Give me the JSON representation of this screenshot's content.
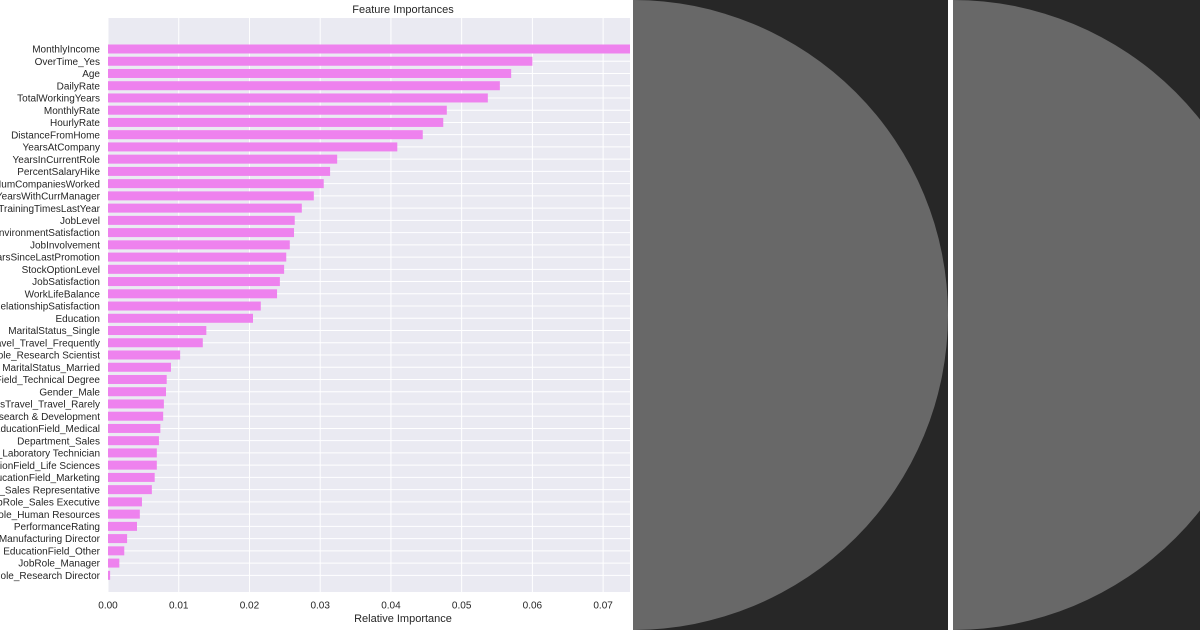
{
  "chart_data": {
    "type": "barh",
    "title": "Feature Importances",
    "x_label": "Relative Importance",
    "color": "#ee82ee",
    "categories": [
      "MonthlyIncome",
      "OverTime_Yes",
      "Age",
      "DailyRate",
      "TotalWorkingYears",
      "MonthlyRate",
      "HourlyRate",
      "DistanceFromHome",
      "YearsAtCompany",
      "YearsInCurrentRole",
      "PercentSalaryHike",
      "NumCompaniesWorked",
      "YearsWithCurrManager",
      "TrainingTimesLastYear",
      "JobLevel",
      "nvironmentSatisfaction",
      "JobInvolvement",
      "arsSinceLastPromotion",
      "StockOptionLevel",
      "JobSatisfaction",
      "WorkLifeBalance",
      "RelationshipSatisfaction",
      "Education",
      "MaritalStatus_Single",
      "avel_Travel_Frequently",
      "ole_Research Scientist",
      "MaritalStatus_Married",
      "Field_Technical Degree",
      "Gender_Male",
      "ssTravel_Travel_Rarely",
      "search & Development",
      "EducationField_Medical",
      "Department_Sales",
      "_Laboratory Technician",
      "tionField_Life Sciences",
      "ucationField_Marketing",
      "_Sales Representative",
      "bRole_Sales Executive",
      "ole_Human Resources",
      "PerformanceRating",
      "Manufacturing Director",
      "EducationField_Other",
      "JobRole_Manager",
      "Role_Research Director"
    ],
    "values": [
      0.0738,
      0.06,
      0.057,
      0.0554,
      0.0537,
      0.0479,
      0.0474,
      0.0445,
      0.0409,
      0.0324,
      0.0314,
      0.0305,
      0.0291,
      0.0274,
      0.0264,
      0.0263,
      0.0257,
      0.0252,
      0.0249,
      0.0243,
      0.0239,
      0.0216,
      0.0205,
      0.0139,
      0.0134,
      0.0102,
      0.0089,
      0.0083,
      0.0082,
      0.0079,
      0.0078,
      0.0074,
      0.0072,
      0.0069,
      0.0069,
      0.0066,
      0.0062,
      0.0048,
      0.0045,
      0.0041,
      0.0027,
      0.0023,
      0.0016,
      0.0003
    ],
    "xlim": [
      0,
      0.0738
    ],
    "xticks": [
      {
        "value": 0,
        "label": "0.00"
      },
      0.01,
      0.02,
      0.03,
      0.04,
      0.05,
      0.06,
      0.07
    ],
    "grid": true
  }
}
